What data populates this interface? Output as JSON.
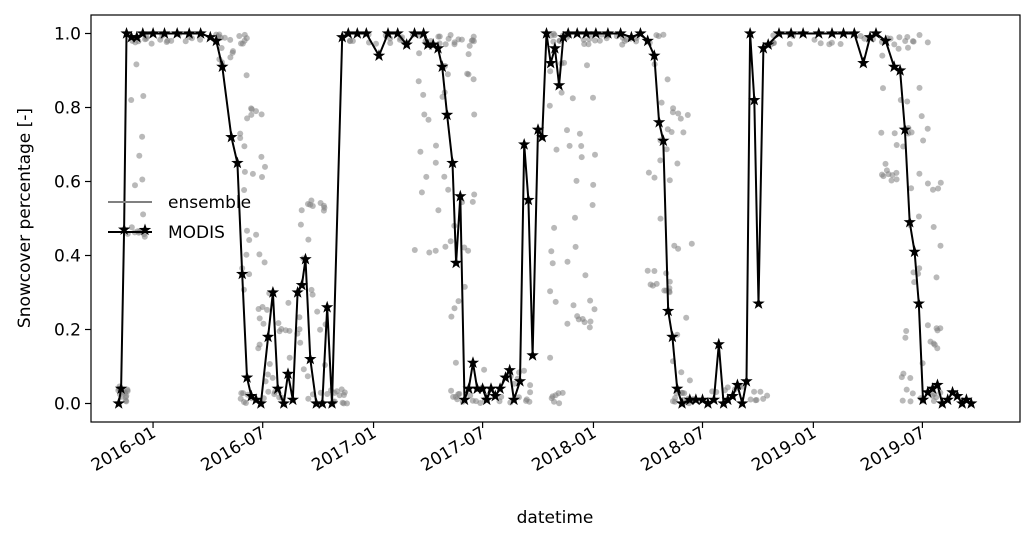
{
  "chart_data": {
    "type": "line",
    "xlabel": "datetime",
    "ylabel": "Snowcover percentage [-]",
    "x_range": [
      "2015-09-20",
      "2019-12-10"
    ],
    "ylim": [
      -0.05,
      1.05
    ],
    "grid": false,
    "legend_position": "center-left",
    "x_ticks": [
      {
        "date": "2016-01-01",
        "label": "2016-01"
      },
      {
        "date": "2016-07-01",
        "label": "2016-07"
      },
      {
        "date": "2017-01-01",
        "label": "2017-01"
      },
      {
        "date": "2017-07-01",
        "label": "2017-07"
      },
      {
        "date": "2018-01-01",
        "label": "2018-01"
      },
      {
        "date": "2018-07-01",
        "label": "2018-07"
      },
      {
        "date": "2019-01-01",
        "label": "2019-01"
      },
      {
        "date": "2019-07-01",
        "label": "2019-07"
      }
    ],
    "y_ticks": [
      {
        "value": 0.0,
        "label": "0.0"
      },
      {
        "value": 0.2,
        "label": "0.2"
      },
      {
        "value": 0.4,
        "label": "0.4"
      },
      {
        "value": 0.6,
        "label": "0.6"
      },
      {
        "value": 0.8,
        "label": "0.8"
      },
      {
        "value": 1.0,
        "label": "1.0"
      }
    ],
    "legend": [
      {
        "label": "ensemble",
        "color": "#808080"
      },
      {
        "label": "MODIS",
        "color": "#000000"
      }
    ],
    "series": [
      {
        "name": "ensemble",
        "style": "scatter-band",
        "color": "#808080",
        "bands": [
          {
            "start": "2015-11-01",
            "end": "2015-11-20",
            "lo": 0.0,
            "hi": 0.05
          },
          {
            "start": "2015-11-20",
            "end": "2015-12-20",
            "lo": 0.45,
            "hi": 1.0
          },
          {
            "start": "2015-12-20",
            "end": "2016-04-10",
            "lo": 0.97,
            "hi": 1.0
          },
          {
            "start": "2016-04-10",
            "end": "2016-05-20",
            "lo": 0.9,
            "hi": 1.0
          },
          {
            "start": "2016-05-20",
            "end": "2016-06-05",
            "lo": 0.0,
            "hi": 1.0
          },
          {
            "start": "2016-06-05",
            "end": "2016-07-05",
            "lo": 0.0,
            "hi": 0.8
          },
          {
            "start": "2016-07-05",
            "end": "2016-09-01",
            "lo": 0.0,
            "hi": 0.3
          },
          {
            "start": "2016-09-01",
            "end": "2016-10-15",
            "lo": 0.0,
            "hi": 0.55
          },
          {
            "start": "2016-10-15",
            "end": "2016-11-20",
            "lo": 0.0,
            "hi": 0.05
          },
          {
            "start": "2016-11-20",
            "end": "2017-03-10",
            "lo": 0.97,
            "hi": 1.0
          },
          {
            "start": "2017-03-10",
            "end": "2017-05-05",
            "lo": 0.4,
            "hi": 1.0
          },
          {
            "start": "2017-05-05",
            "end": "2017-06-20",
            "lo": 0.0,
            "hi": 1.0
          },
          {
            "start": "2017-06-20",
            "end": "2017-10-20",
            "lo": 0.0,
            "hi": 0.1
          },
          {
            "start": "2017-10-20",
            "end": "2017-11-15",
            "lo": 0.0,
            "hi": 1.0
          },
          {
            "start": "2017-11-15",
            "end": "2018-01-05",
            "lo": 0.2,
            "hi": 1.0
          },
          {
            "start": "2018-01-05",
            "end": "2018-04-01",
            "lo": 0.97,
            "hi": 1.0
          },
          {
            "start": "2018-04-01",
            "end": "2018-05-10",
            "lo": 0.3,
            "hi": 1.0
          },
          {
            "start": "2018-05-10",
            "end": "2018-06-15",
            "lo": 0.0,
            "hi": 0.8
          },
          {
            "start": "2018-06-15",
            "end": "2018-10-20",
            "lo": 0.0,
            "hi": 0.05
          },
          {
            "start": "2018-10-20",
            "end": "2019-04-20",
            "lo": 0.97,
            "hi": 1.0
          },
          {
            "start": "2019-04-20",
            "end": "2019-05-25",
            "lo": 0.6,
            "hi": 1.0
          },
          {
            "start": "2019-05-25",
            "end": "2019-07-10",
            "lo": 0.0,
            "hi": 1.0
          },
          {
            "start": "2019-07-10",
            "end": "2019-08-05",
            "lo": 0.0,
            "hi": 0.6
          }
        ]
      },
      {
        "name": "MODIS",
        "style": "line-star",
        "color": "#000000",
        "points": [
          [
            "2015-11-05",
            0.0
          ],
          [
            "2015-11-09",
            0.04
          ],
          [
            "2015-11-14",
            0.47
          ],
          [
            "2015-11-18",
            1.0
          ],
          [
            "2015-11-26",
            0.99
          ],
          [
            "2015-12-05",
            0.99
          ],
          [
            "2015-12-15",
            1.0
          ],
          [
            "2016-01-01",
            1.0
          ],
          [
            "2016-01-20",
            1.0
          ],
          [
            "2016-02-10",
            1.0
          ],
          [
            "2016-03-01",
            1.0
          ],
          [
            "2016-03-20",
            1.0
          ],
          [
            "2016-04-05",
            0.99
          ],
          [
            "2016-04-15",
            0.98
          ],
          [
            "2016-04-25",
            0.91
          ],
          [
            "2016-05-10",
            0.72
          ],
          [
            "2016-05-20",
            0.65
          ],
          [
            "2016-05-28",
            0.35
          ],
          [
            "2016-06-05",
            0.07
          ],
          [
            "2016-06-12",
            0.02
          ],
          [
            "2016-06-20",
            0.01
          ],
          [
            "2016-06-28",
            0.0
          ],
          [
            "2016-07-10",
            0.18
          ],
          [
            "2016-07-18",
            0.3
          ],
          [
            "2016-07-26",
            0.04
          ],
          [
            "2016-08-05",
            0.0
          ],
          [
            "2016-08-12",
            0.08
          ],
          [
            "2016-08-20",
            0.01
          ],
          [
            "2016-08-28",
            0.3
          ],
          [
            "2016-09-04",
            0.32
          ],
          [
            "2016-09-10",
            0.39
          ],
          [
            "2016-09-18",
            0.12
          ],
          [
            "2016-09-28",
            0.0
          ],
          [
            "2016-10-08",
            0.0
          ],
          [
            "2016-10-16",
            0.26
          ],
          [
            "2016-10-24",
            0.0
          ],
          [
            "2016-11-10",
            0.99
          ],
          [
            "2016-11-20",
            1.0
          ],
          [
            "2016-12-05",
            1.0
          ],
          [
            "2016-12-20",
            1.0
          ],
          [
            "2017-01-10",
            0.94
          ],
          [
            "2017-01-25",
            1.0
          ],
          [
            "2017-02-10",
            1.0
          ],
          [
            "2017-02-25",
            0.97
          ],
          [
            "2017-03-10",
            1.0
          ],
          [
            "2017-03-25",
            1.0
          ],
          [
            "2017-04-01",
            0.97
          ],
          [
            "2017-04-10",
            0.97
          ],
          [
            "2017-04-18",
            0.96
          ],
          [
            "2017-04-25",
            0.91
          ],
          [
            "2017-05-03",
            0.78
          ],
          [
            "2017-05-12",
            0.65
          ],
          [
            "2017-05-18",
            0.38
          ],
          [
            "2017-05-25",
            0.56
          ],
          [
            "2017-06-01",
            0.01
          ],
          [
            "2017-06-08",
            0.04
          ],
          [
            "2017-06-15",
            0.11
          ],
          [
            "2017-06-22",
            0.04
          ],
          [
            "2017-07-01",
            0.04
          ],
          [
            "2017-07-08",
            0.01
          ],
          [
            "2017-07-15",
            0.04
          ],
          [
            "2017-07-22",
            0.02
          ],
          [
            "2017-07-30",
            0.04
          ],
          [
            "2017-08-08",
            0.07
          ],
          [
            "2017-08-15",
            0.09
          ],
          [
            "2017-08-22",
            0.01
          ],
          [
            "2017-09-01",
            0.06
          ],
          [
            "2017-09-08",
            0.7
          ],
          [
            "2017-09-15",
            0.55
          ],
          [
            "2017-09-22",
            0.13
          ],
          [
            "2017-10-01",
            0.74
          ],
          [
            "2017-10-08",
            0.72
          ],
          [
            "2017-10-15",
            1.0
          ],
          [
            "2017-10-22",
            0.92
          ],
          [
            "2017-10-29",
            0.96
          ],
          [
            "2017-11-05",
            0.86
          ],
          [
            "2017-11-12",
            0.99
          ],
          [
            "2017-11-20",
            1.0
          ],
          [
            "2017-12-05",
            1.0
          ],
          [
            "2017-12-20",
            1.0
          ],
          [
            "2018-01-05",
            1.0
          ],
          [
            "2018-01-25",
            1.0
          ],
          [
            "2018-02-15",
            1.0
          ],
          [
            "2018-03-05",
            0.99
          ],
          [
            "2018-03-20",
            1.0
          ],
          [
            "2018-04-01",
            0.98
          ],
          [
            "2018-04-12",
            0.94
          ],
          [
            "2018-04-20",
            0.76
          ],
          [
            "2018-04-27",
            0.71
          ],
          [
            "2018-05-05",
            0.25
          ],
          [
            "2018-05-12",
            0.18
          ],
          [
            "2018-05-20",
            0.04
          ],
          [
            "2018-05-28",
            0.0
          ],
          [
            "2018-06-10",
            0.01
          ],
          [
            "2018-06-20",
            0.01
          ],
          [
            "2018-07-01",
            0.01
          ],
          [
            "2018-07-10",
            0.0
          ],
          [
            "2018-07-20",
            0.01
          ],
          [
            "2018-07-28",
            0.16
          ],
          [
            "2018-08-05",
            0.0
          ],
          [
            "2018-08-12",
            0.01
          ],
          [
            "2018-08-20",
            0.02
          ],
          [
            "2018-08-28",
            0.05
          ],
          [
            "2018-09-05",
            0.0
          ],
          [
            "2018-09-12",
            0.06
          ],
          [
            "2018-09-18",
            1.0
          ],
          [
            "2018-09-25",
            0.82
          ],
          [
            "2018-10-02",
            0.27
          ],
          [
            "2018-10-10",
            0.96
          ],
          [
            "2018-10-18",
            0.97
          ],
          [
            "2018-11-05",
            1.0
          ],
          [
            "2018-11-25",
            1.0
          ],
          [
            "2018-12-15",
            1.0
          ],
          [
            "2019-01-10",
            1.0
          ],
          [
            "2019-02-01",
            1.0
          ],
          [
            "2019-02-20",
            1.0
          ],
          [
            "2019-03-10",
            1.0
          ],
          [
            "2019-03-25",
            0.92
          ],
          [
            "2019-04-05",
            0.99
          ],
          [
            "2019-04-15",
            1.0
          ],
          [
            "2019-05-01",
            0.98
          ],
          [
            "2019-05-15",
            0.91
          ],
          [
            "2019-05-25",
            0.9
          ],
          [
            "2019-06-02",
            0.74
          ],
          [
            "2019-06-10",
            0.49
          ],
          [
            "2019-06-18",
            0.41
          ],
          [
            "2019-06-25",
            0.27
          ],
          [
            "2019-07-02",
            0.01
          ],
          [
            "2019-07-10",
            0.03
          ],
          [
            "2019-07-18",
            0.04
          ],
          [
            "2019-07-26",
            0.05
          ],
          [
            "2019-08-03",
            0.0
          ],
          [
            "2019-08-12",
            0.01
          ],
          [
            "2019-08-20",
            0.03
          ],
          [
            "2019-08-28",
            0.02
          ],
          [
            "2019-09-05",
            0.0
          ],
          [
            "2019-09-12",
            0.01
          ],
          [
            "2019-09-20",
            0.0
          ]
        ]
      }
    ]
  }
}
